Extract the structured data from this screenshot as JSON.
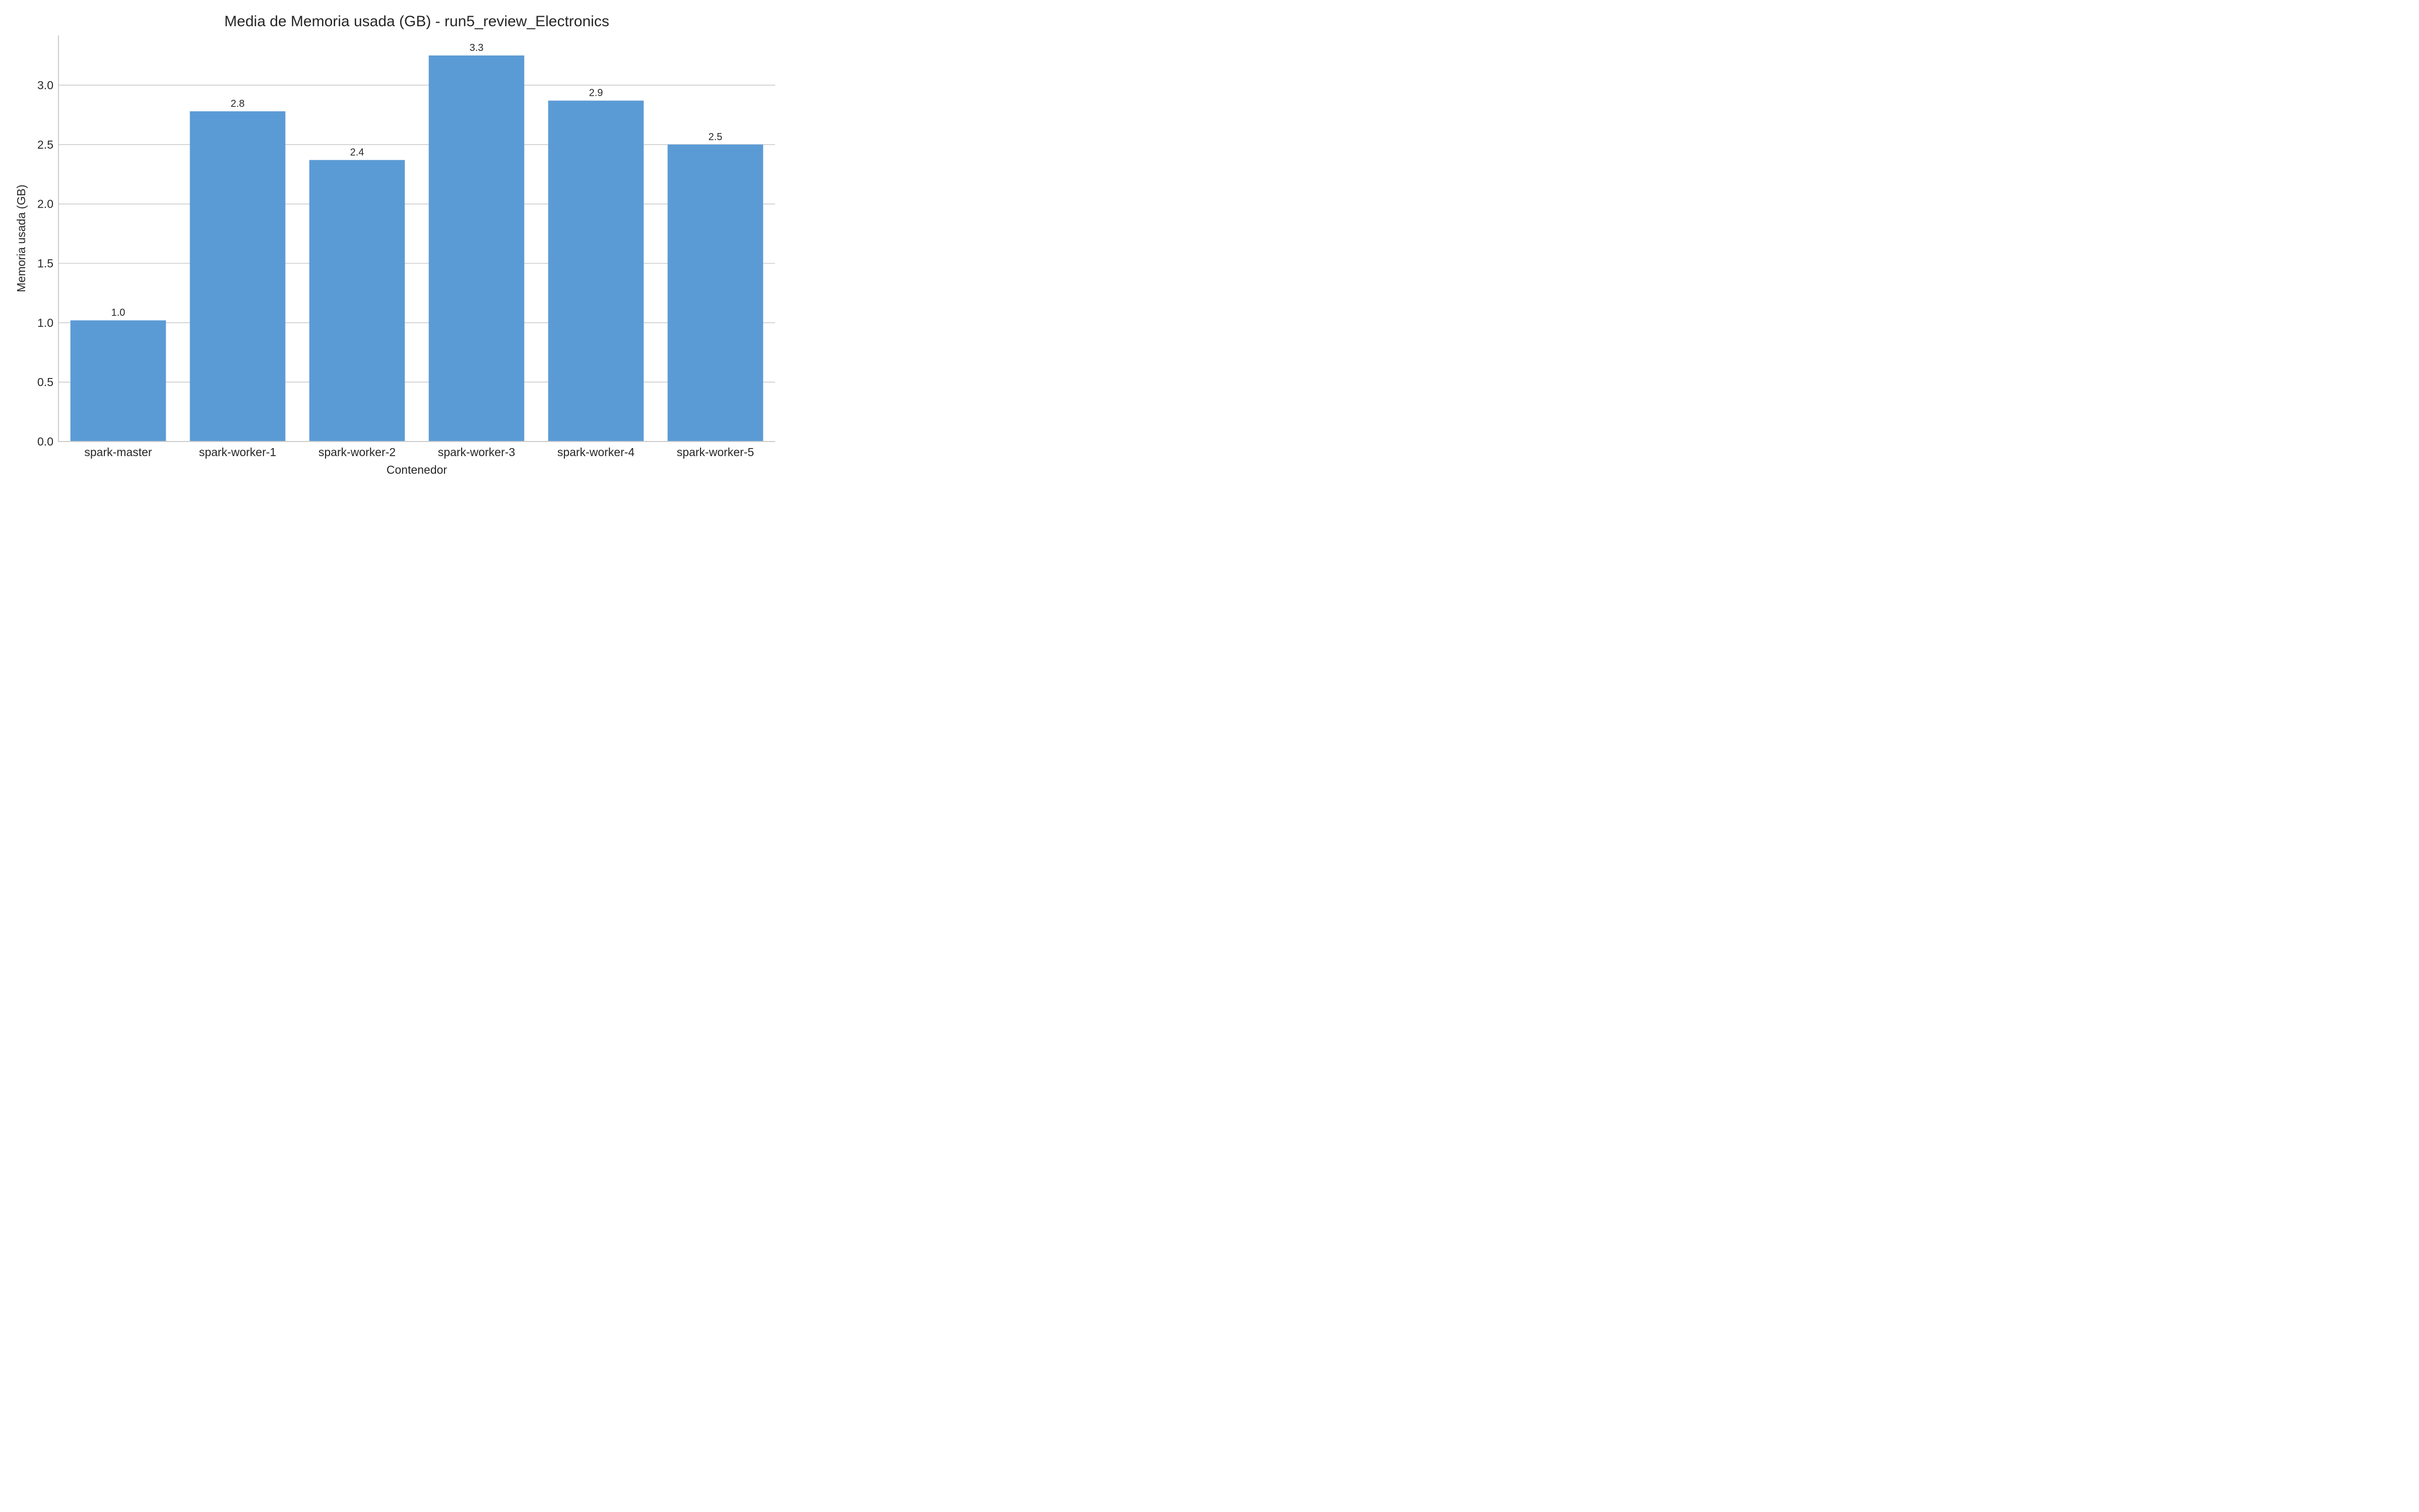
{
  "chart_data": {
    "type": "bar",
    "title": "Media de Memoria usada (GB) - run5_review_Electronics",
    "xlabel": "Contenedor",
    "ylabel": "Memoria usada (GB)",
    "categories": [
      "spark-master",
      "spark-worker-1",
      "spark-worker-2",
      "spark-worker-3",
      "spark-worker-4",
      "spark-worker-5"
    ],
    "values": [
      1.02,
      2.78,
      2.37,
      3.25,
      2.87,
      2.5
    ],
    "data_labels": [
      "1.0",
      "2.8",
      "2.4",
      "3.3",
      "2.9",
      "2.5"
    ],
    "ylim": [
      0,
      3.42
    ],
    "yticks": [
      0.0,
      0.5,
      1.0,
      1.5,
      2.0,
      2.5,
      3.0
    ],
    "ytick_labels": [
      "0.0",
      "0.5",
      "1.0",
      "1.5",
      "2.0",
      "2.5",
      "3.0"
    ],
    "grid": "horizontal",
    "legend": "none",
    "bar_color": "#5b9bd5",
    "grid_color": "#cccccc",
    "text_color": "#262626"
  }
}
